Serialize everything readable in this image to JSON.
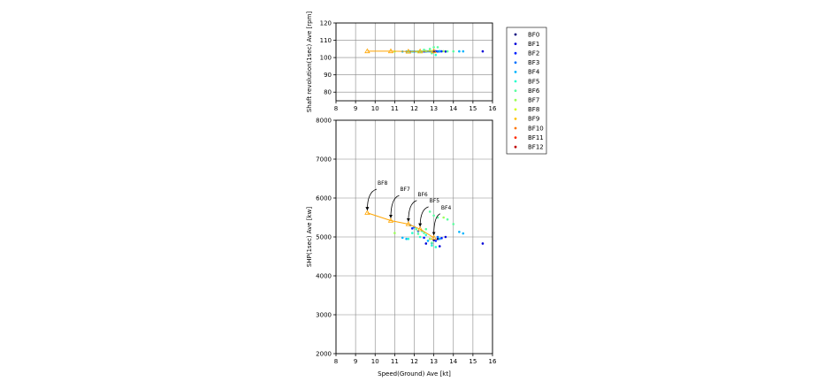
{
  "chart_data": [
    {
      "type": "scatter",
      "xlabel": "",
      "ylabel": "Shaft revolution(1sec) Ave [rpm]",
      "xlim": [
        8,
        16
      ],
      "ylim": [
        75,
        120
      ],
      "xticks": [
        8,
        9,
        10,
        11,
        12,
        13,
        14,
        15,
        16
      ],
      "yticks": [
        80,
        90,
        100,
        110,
        120
      ],
      "grid": true,
      "y_field": "rpm"
    },
    {
      "type": "scatter",
      "xlabel": "Speed(Ground) Ave [kt]",
      "ylabel": "SHP(1sec) Ave [kw]",
      "xlim": [
        8,
        16
      ],
      "ylim": [
        2000,
        8000
      ],
      "xticks": [
        8,
        9,
        10,
        11,
        12,
        13,
        14,
        15,
        16
      ],
      "yticks": [
        2000,
        3000,
        4000,
        5000,
        6000,
        7000,
        8000
      ],
      "grid": true,
      "y_field": "shp",
      "annotations": [
        {
          "text": "BF8",
          "point": [
            9.6,
            5620
          ],
          "text_at": [
            10.35,
            6340
          ]
        },
        {
          "text": "BF7",
          "point": [
            10.8,
            5420
          ],
          "text_at": [
            11.5,
            6180
          ]
        },
        {
          "text": "BF6",
          "point": [
            11.7,
            5330
          ],
          "text_at": [
            12.4,
            6050
          ]
        },
        {
          "text": "BF5",
          "point": [
            12.3,
            5200
          ],
          "text_at": [
            13.0,
            5890
          ]
        },
        {
          "text": "BF4",
          "point": [
            13.0,
            4980
          ],
          "text_at": [
            13.6,
            5710
          ]
        }
      ]
    }
  ],
  "legend": {
    "placement": "right"
  },
  "fit_line": {
    "color": "#ffa500",
    "marker": "triangle",
    "points": [
      {
        "speed": 9.6,
        "shp": 5620,
        "rpm": 103.7
      },
      {
        "speed": 10.8,
        "shp": 5420,
        "rpm": 103.7
      },
      {
        "speed": 11.7,
        "shp": 5330,
        "rpm": 103.5
      },
      {
        "speed": 12.3,
        "shp": 5200,
        "rpm": 103.6
      },
      {
        "speed": 13.0,
        "shp": 4980,
        "rpm": 103.7
      }
    ]
  },
  "series": [
    {
      "name": "BF0",
      "color": "#00007f",
      "points": [
        [
          13.2,
          4950,
          103.5
        ],
        [
          13.0,
          4920,
          103.6
        ]
      ]
    },
    {
      "name": "BF1",
      "color": "#0000d8",
      "points": [
        [
          15.5,
          4830,
          103.6
        ],
        [
          13.6,
          5000,
          103.5
        ],
        [
          12.6,
          4830,
          103.5
        ],
        [
          13.3,
          4760,
          103.6
        ]
      ]
    },
    {
      "name": "BF2",
      "color": "#0020ff",
      "points": [
        [
          13.4,
          4970,
          103.6
        ],
        [
          12.9,
          4840,
          103.5
        ],
        [
          11.9,
          5220,
          103.5
        ],
        [
          13.1,
          4900,
          103.7
        ],
        [
          12.5,
          4980,
          103.5
        ]
      ]
    },
    {
      "name": "BF3",
      "color": "#0070ff",
      "points": [
        [
          11.8,
          5300,
          103.5
        ],
        [
          12.2,
          5150,
          103.5
        ],
        [
          13.2,
          5000,
          103.6
        ],
        [
          12.0,
          5250,
          103.5
        ],
        [
          12.8,
          4950,
          103.6
        ]
      ]
    },
    {
      "name": "BF4",
      "color": "#00b4ff",
      "points": [
        [
          14.3,
          5130,
          103.6
        ],
        [
          14.5,
          5090,
          103.6
        ],
        [
          11.6,
          4950,
          103.5
        ],
        [
          11.4,
          4980,
          103.5
        ],
        [
          12.7,
          4900,
          103.6
        ],
        [
          13.3,
          4950,
          103.7
        ]
      ]
    },
    {
      "name": "BF5",
      "color": "#29ffce",
      "points": [
        [
          12.4,
          5150,
          103.5
        ],
        [
          12.6,
          5050,
          103.6
        ],
        [
          12.9,
          4780,
          103.6
        ],
        [
          13.1,
          4740,
          101.5
        ],
        [
          11.9,
          5100,
          103.5
        ],
        [
          12.3,
          5000,
          103.5
        ],
        [
          11.7,
          4950,
          103.5
        ]
      ]
    },
    {
      "name": "BF6",
      "color": "#5cffa0",
      "points": [
        [
          12.1,
          5200,
          103.5
        ],
        [
          12.5,
          5100,
          104.5
        ],
        [
          13.0,
          5550,
          106.0
        ],
        [
          13.2,
          5500,
          106.0
        ],
        [
          12.8,
          5650,
          105.0
        ],
        [
          13.7,
          5450,
          103.6
        ],
        [
          14.0,
          5330,
          103.6
        ],
        [
          12.9,
          4850,
          102.5
        ],
        [
          12.2,
          5080,
          103.5
        ],
        [
          12.6,
          5200,
          103.8
        ]
      ]
    },
    {
      "name": "BF7",
      "color": "#9cff5a",
      "points": [
        [
          11.0,
          5100,
          103.5
        ],
        [
          12.8,
          4950,
          104.0
        ],
        [
          13.5,
          5500,
          103.7
        ]
      ]
    },
    {
      "name": "BF8",
      "color": "#d2ff25",
      "points": []
    },
    {
      "name": "BF9",
      "color": "#ffc400",
      "points": []
    },
    {
      "name": "BF10",
      "color": "#ff7400",
      "points": []
    },
    {
      "name": "BF11",
      "color": "#ff2a00",
      "points": []
    },
    {
      "name": "BF12",
      "color": "#c00000",
      "points": []
    }
  ]
}
